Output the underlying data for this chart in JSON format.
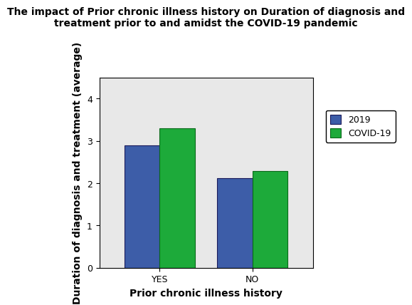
{
  "title": "The impact of Prior chronic illness history on Duration of diagnosis and\ntreatment prior to and amidst the COVID-19 pandemic",
  "xlabel": "Prior chronic illness history",
  "ylabel": "Duration of diagnosis and treatment (average)",
  "categories": [
    "YES",
    "NO"
  ],
  "series": {
    "2019": [
      2.9,
      2.12
    ],
    "COVID-19": [
      3.3,
      2.28
    ]
  },
  "bar_colors": {
    "2019": "#3D5DA8",
    "COVID-19": "#1DAA3A"
  },
  "bar_edge_color": "#1A1A5A",
  "green_edge_color": "#0A6A1A",
  "ylim": [
    0,
    4.5
  ],
  "yticks": [
    0,
    1,
    2,
    3,
    4
  ],
  "bar_width": 0.38,
  "plot_bg_color": "#E8E8E8",
  "fig_bg_color": "#FFFFFF",
  "legend_labels": [
    "2019",
    "COVID-19"
  ],
  "title_fontsize": 10,
  "axis_label_fontsize": 10,
  "tick_fontsize": 9,
  "legend_fontsize": 9
}
